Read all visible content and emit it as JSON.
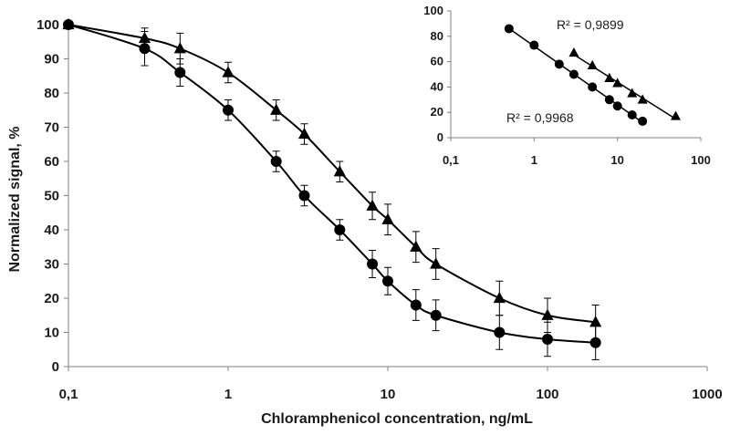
{
  "chart_data": [
    {
      "type": "scatter",
      "role": "main",
      "xlabel": "Chloramphenicol concentration, ng/mL",
      "ylabel": "Normalized signal, %",
      "x_scale": "log",
      "xlim": [
        0.1,
        1000
      ],
      "ylim": [
        0,
        100
      ],
      "x_ticks": [
        0.1,
        1,
        10,
        100,
        1000
      ],
      "x_tick_labels": [
        "0,1",
        "1",
        "10",
        "100",
        "1000"
      ],
      "y_ticks": [
        0,
        10,
        20,
        30,
        40,
        50,
        60,
        70,
        80,
        90,
        100
      ],
      "y_tick_labels": [
        "0",
        "10",
        "20",
        "30",
        "40",
        "50",
        "60",
        "70",
        "80",
        "90",
        "100"
      ],
      "grid": false,
      "series": [
        {
          "marker": "circle",
          "color": "#000000",
          "points": [
            {
              "x": 0.1,
              "y": 100,
              "err": 0
            },
            {
              "x": 0.3,
              "y": 93,
              "err": 5
            },
            {
              "x": 0.5,
              "y": 86,
              "err": 4
            },
            {
              "x": 1,
              "y": 75,
              "err": 3
            },
            {
              "x": 2,
              "y": 60,
              "err": 3
            },
            {
              "x": 3,
              "y": 50,
              "err": 3
            },
            {
              "x": 5,
              "y": 40,
              "err": 3
            },
            {
              "x": 8,
              "y": 30,
              "err": 4
            },
            {
              "x": 10,
              "y": 25,
              "err": 4
            },
            {
              "x": 15,
              "y": 18,
              "err": 4.5
            },
            {
              "x": 20,
              "y": 15,
              "err": 4.5
            },
            {
              "x": 50,
              "y": 10,
              "err": 5
            },
            {
              "x": 100,
              "y": 8,
              "err": 5
            },
            {
              "x": 200,
              "y": 7,
              "err": 5
            }
          ]
        },
        {
          "marker": "triangle",
          "color": "#000000",
          "points": [
            {
              "x": 0.1,
              "y": 100,
              "err": 0
            },
            {
              "x": 0.3,
              "y": 96,
              "err": 3
            },
            {
              "x": 0.5,
              "y": 93,
              "err": 4.5
            },
            {
              "x": 1,
              "y": 86,
              "err": 3
            },
            {
              "x": 2,
              "y": 75,
              "err": 3
            },
            {
              "x": 3,
              "y": 68,
              "err": 3
            },
            {
              "x": 5,
              "y": 57,
              "err": 3
            },
            {
              "x": 8,
              "y": 47,
              "err": 4
            },
            {
              "x": 10,
              "y": 43,
              "err": 4.5
            },
            {
              "x": 15,
              "y": 35,
              "err": 4.5
            },
            {
              "x": 20,
              "y": 30,
              "err": 4.5
            },
            {
              "x": 50,
              "y": 20,
              "err": 5
            },
            {
              "x": 100,
              "y": 15,
              "err": 5
            },
            {
              "x": 200,
              "y": 13,
              "err": 5
            }
          ]
        }
      ]
    },
    {
      "type": "scatter",
      "role": "inset",
      "x_scale": "log",
      "xlim": [
        0.1,
        100
      ],
      "ylim": [
        0,
        100
      ],
      "x_ticks": [
        0.1,
        1,
        10,
        100
      ],
      "x_tick_labels": [
        "0,1",
        "1",
        "10",
        "100"
      ],
      "y_ticks": [
        0,
        20,
        40,
        60,
        80,
        100
      ],
      "y_tick_labels": [
        "0",
        "20",
        "40",
        "60",
        "80",
        "100"
      ],
      "grid": false,
      "series": [
        {
          "marker": "circle",
          "color": "#000000",
          "r2_label": "R² = 0,9968",
          "trend_x": [
            0.5,
            20
          ],
          "points": [
            {
              "x": 0.5,
              "y": 86
            },
            {
              "x": 1,
              "y": 73
            },
            {
              "x": 2,
              "y": 58
            },
            {
              "x": 3,
              "y": 50
            },
            {
              "x": 5,
              "y": 40
            },
            {
              "x": 8,
              "y": 30
            },
            {
              "x": 10,
              "y": 25
            },
            {
              "x": 15,
              "y": 18
            },
            {
              "x": 20,
              "y": 13
            }
          ]
        },
        {
          "marker": "triangle",
          "color": "#000000",
          "r2_label": "R² = 0,9899",
          "trend_x": [
            3,
            50
          ],
          "points": [
            {
              "x": 3,
              "y": 67
            },
            {
              "x": 5,
              "y": 57
            },
            {
              "x": 8,
              "y": 47
            },
            {
              "x": 10,
              "y": 43
            },
            {
              "x": 15,
              "y": 35
            },
            {
              "x": 20,
              "y": 30
            },
            {
              "x": 50,
              "y": 17
            }
          ]
        }
      ]
    }
  ]
}
